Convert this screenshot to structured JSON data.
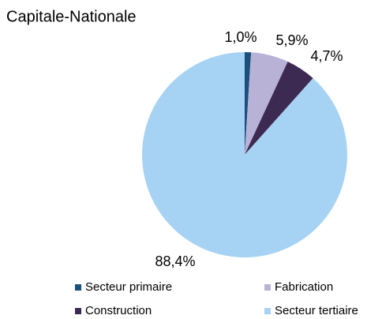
{
  "chart_data": {
    "type": "pie",
    "title": "Capitale-Nationale",
    "categories": [
      "Secteur primaire",
      "Fabrication",
      "Construction",
      "Secteur tertiaire"
    ],
    "values": [
      1.0,
      5.9,
      4.7,
      88.4
    ],
    "value_labels": [
      "1,0%",
      "5,9%",
      "4,7%",
      "88,4%"
    ],
    "colors": [
      "#1b4f7c",
      "#b8b2d6",
      "#3d2a52",
      "#a6d3f3"
    ],
    "legend": "bottom"
  }
}
